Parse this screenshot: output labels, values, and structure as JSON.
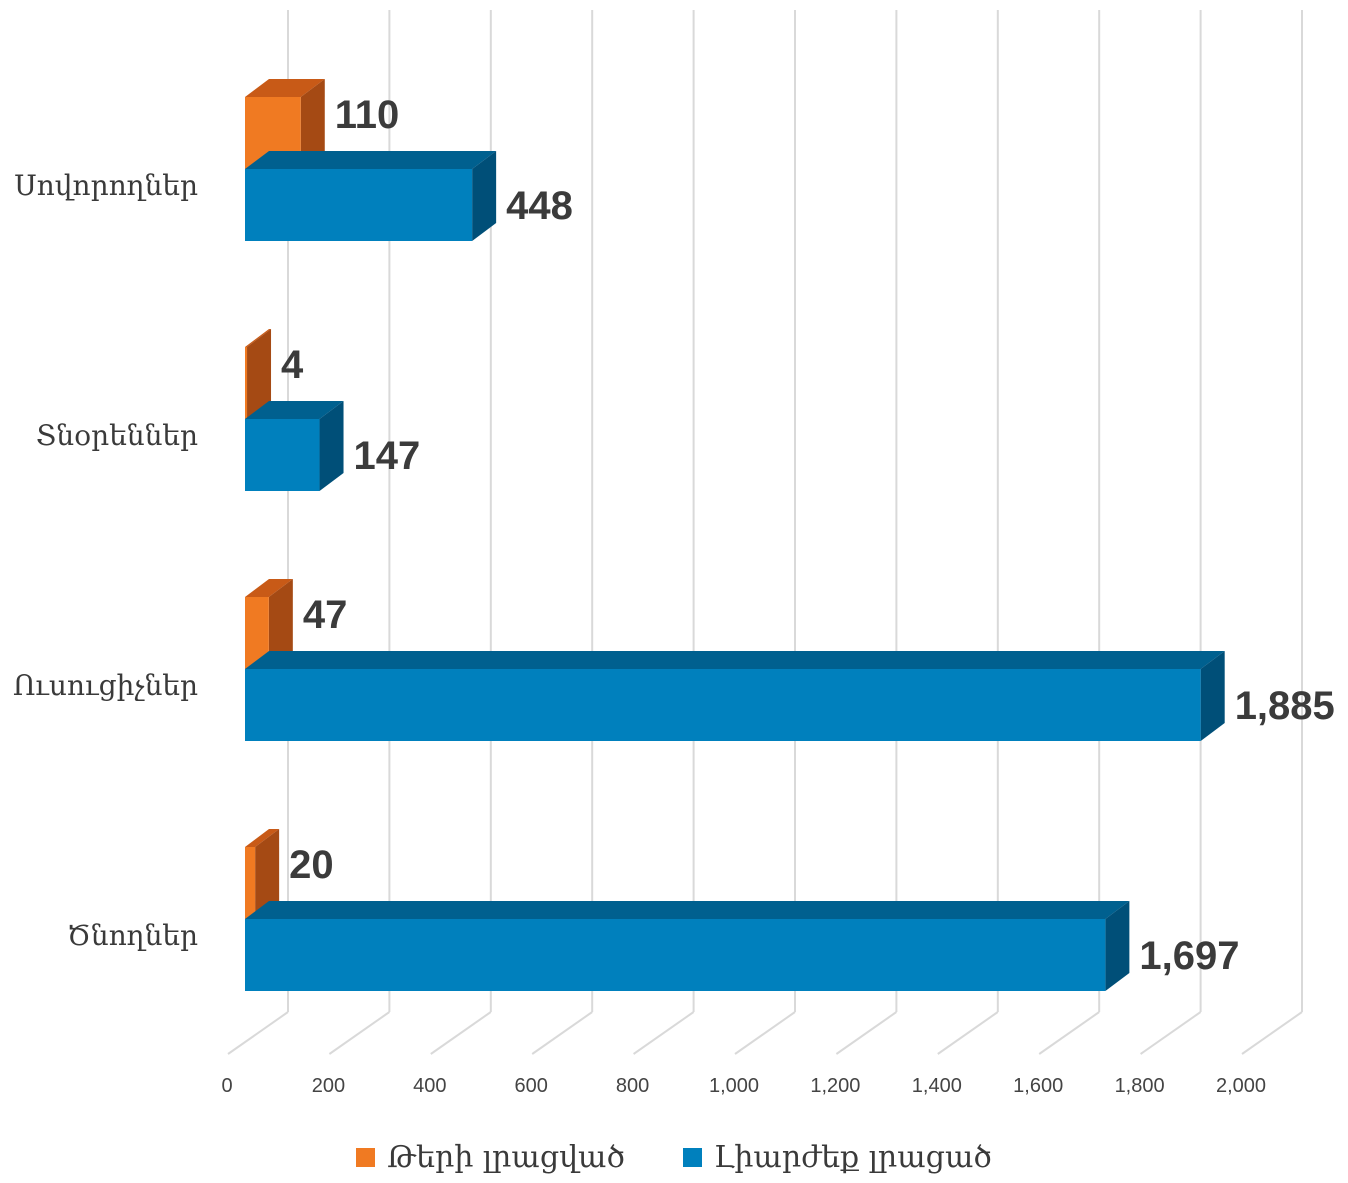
{
  "chart_data": {
    "type": "bar",
    "orientation": "horizontal",
    "three_d": true,
    "categories": [
      "Սովորողներ",
      "Տնօրեններ",
      "Ուսուցիչներ",
      "Ծնողներ"
    ],
    "series": [
      {
        "name": "Թերի լրացված",
        "values": [
          110,
          4,
          47,
          20
        ],
        "color": "#F07A22",
        "side_color": "#A54A14",
        "top_color": "#C85A17"
      },
      {
        "name": "Լիարժեք լրացած",
        "values": [
          448,
          147,
          1885,
          1697
        ],
        "color": "#0080BD",
        "side_color": "#004F78",
        "top_color": "#00608F"
      }
    ],
    "data_labels": [
      [
        "110",
        "4",
        "47",
        "20"
      ],
      [
        "448",
        "147",
        "1,885",
        "1,697"
      ]
    ],
    "xlim": [
      0,
      2000
    ],
    "x_ticks": [
      "0",
      "200",
      "400",
      "600",
      "800",
      "1,000",
      "1,200",
      "1,400",
      "1,600",
      "1,800",
      "2,000"
    ],
    "grid": true,
    "legend_position": "bottom"
  }
}
